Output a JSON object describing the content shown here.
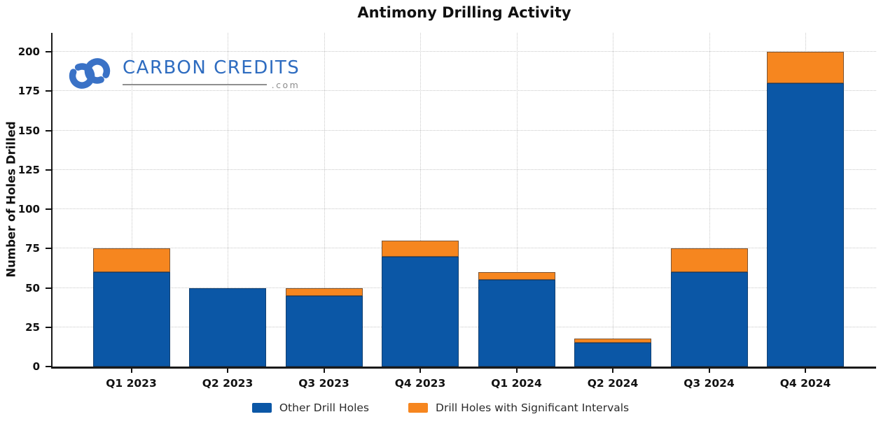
{
  "chart_data": {
    "type": "bar",
    "stacked": true,
    "title": "Antimony Drilling Activity",
    "ylabel": "Number of Holes Drilled",
    "xlabel": "",
    "categories": [
      "Q1 2023",
      "Q2 2023",
      "Q3 2023",
      "Q4 2023",
      "Q1 2024",
      "Q2 2024",
      "Q3 2024",
      "Q4 2024"
    ],
    "series": [
      {
        "name": "Other Drill Holes",
        "color": "#0B57A6",
        "values": [
          60,
          50,
          45,
          70,
          55,
          15,
          60,
          180
        ]
      },
      {
        "name": "Drill Holes with Significant Intervals",
        "color": "#F6861F",
        "values": [
          15,
          0,
          5,
          10,
          5,
          3,
          15,
          20
        ]
      }
    ],
    "totals": [
      75,
      50,
      50,
      80,
      60,
      18,
      75,
      200
    ],
    "yticks": [
      0,
      25,
      50,
      75,
      100,
      125,
      150,
      175,
      200
    ],
    "ylim": [
      0,
      212
    ],
    "grid": true,
    "legend_position": "bottom"
  },
  "watermark": {
    "brand": "CARBON CREDITS",
    "domain": ".com",
    "brand_color": "#2E6CC0",
    "mark_color": "#3A72C6"
  }
}
